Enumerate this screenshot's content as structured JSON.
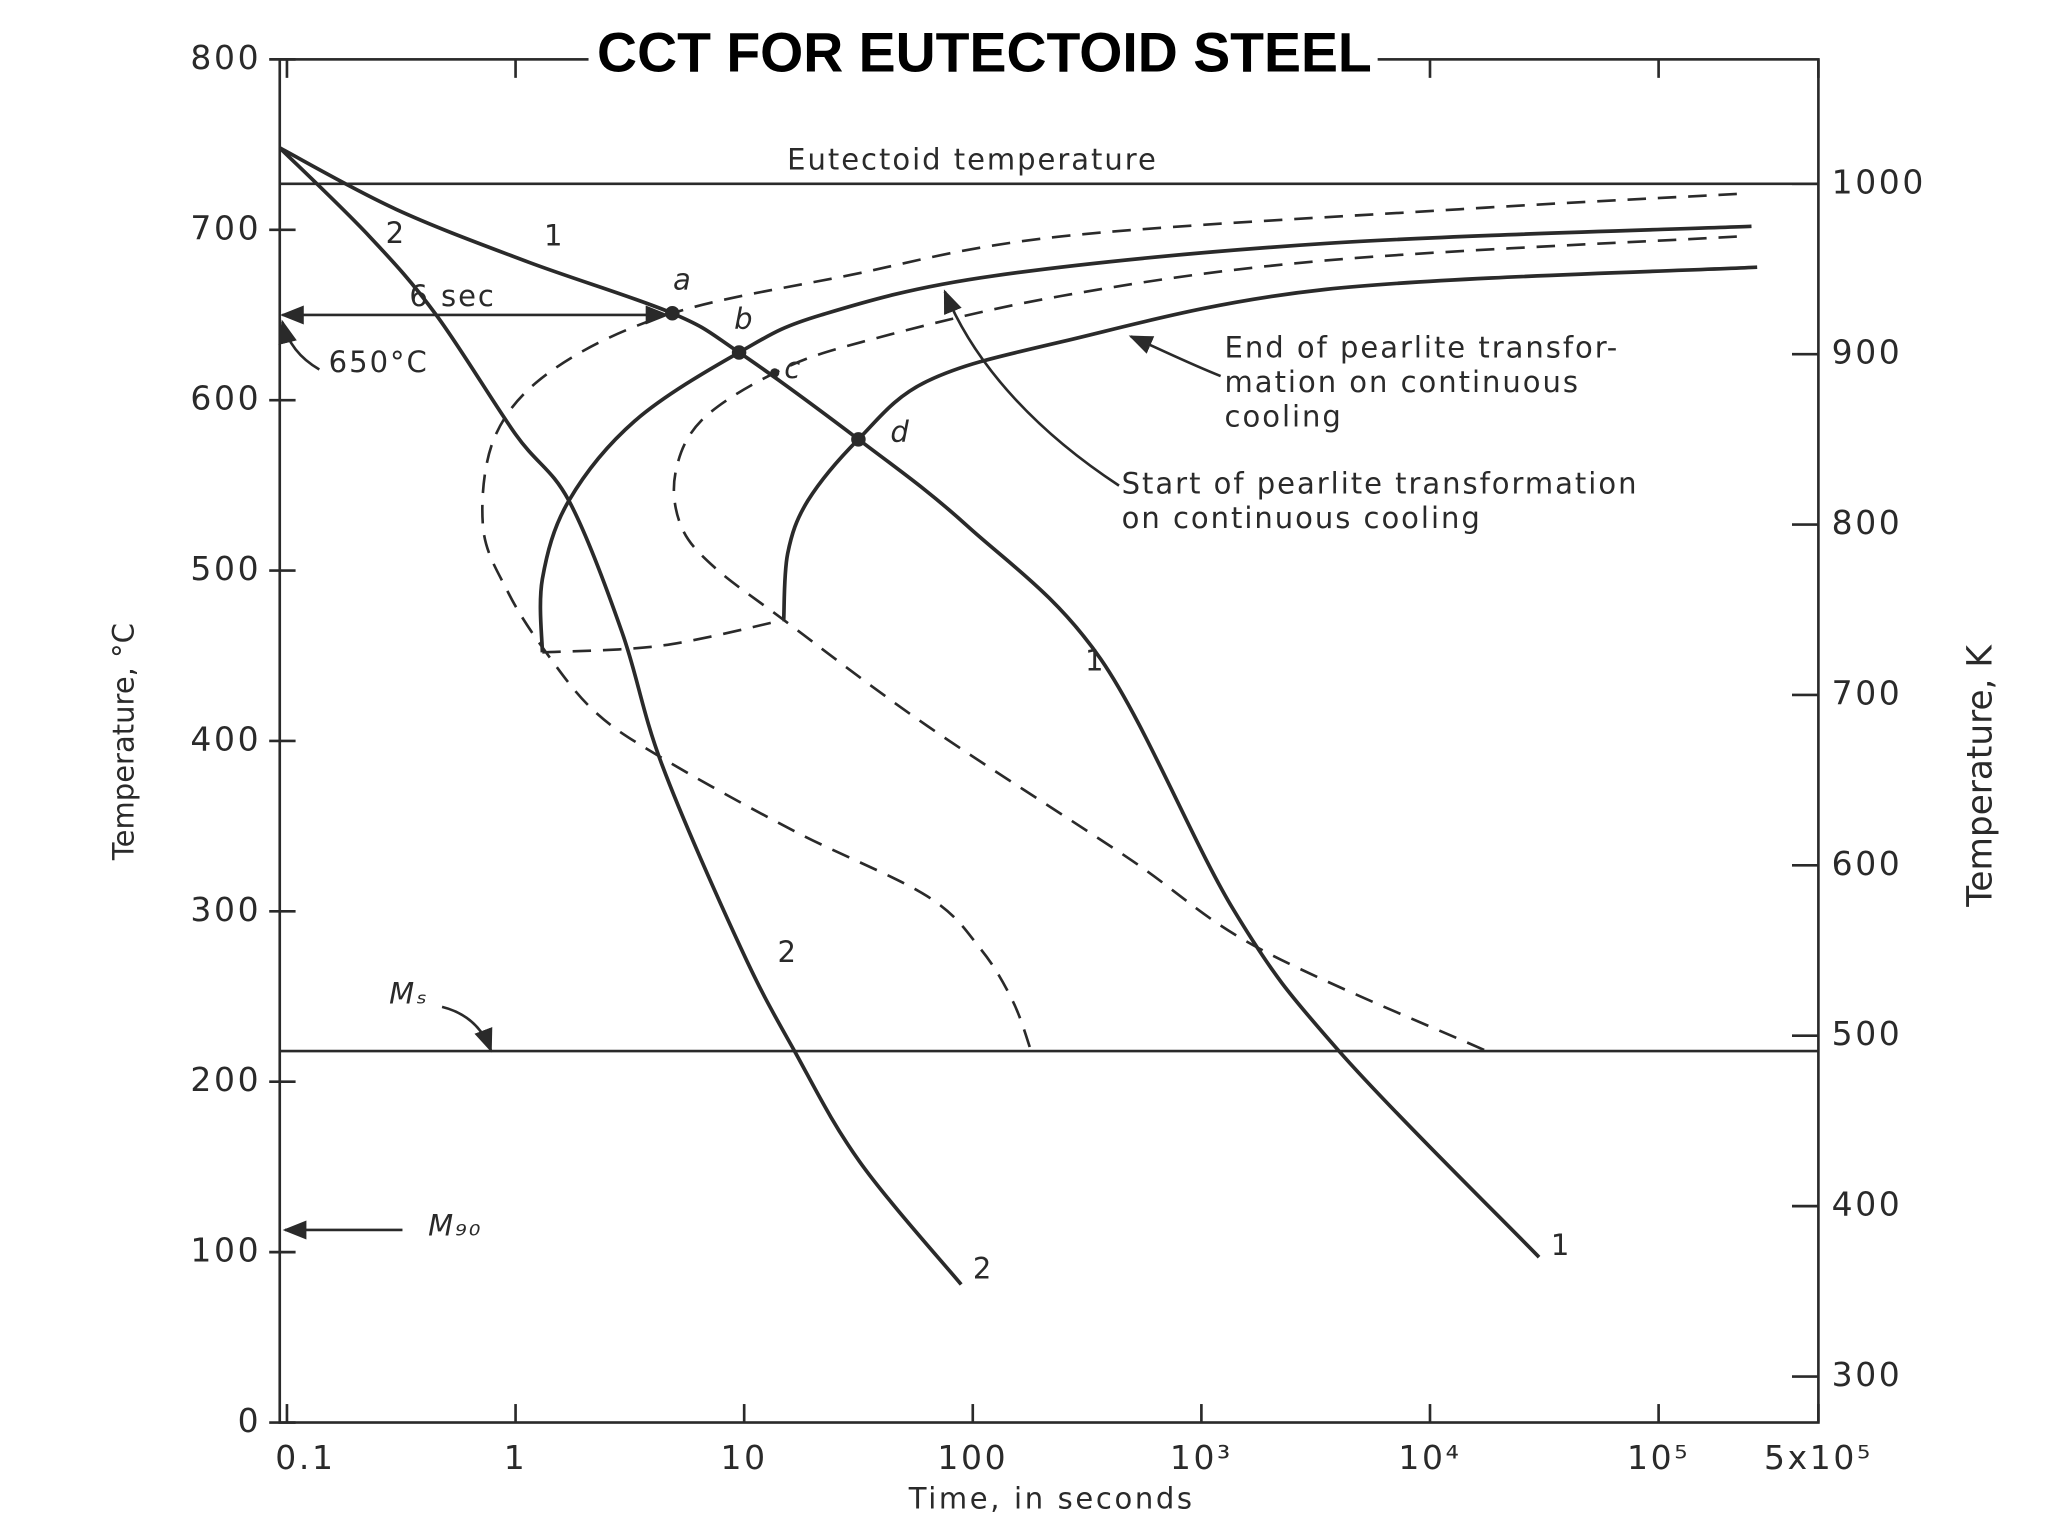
{
  "chart_data": {
    "type": "line",
    "title": "CCT FOR EUTECTOID STEEL",
    "x_label": "Time, in seconds",
    "y_label": "Temperature, °C",
    "y2_label": "Temperature, K",
    "x_scale": "log",
    "xlim": [
      0.093,
      500000
    ],
    "xticks": [
      0.1,
      1,
      10,
      100,
      {
        "value": 1000,
        "label": "10³"
      },
      {
        "value": 10000,
        "label": "10⁴"
      },
      {
        "value": 100000,
        "label": "10⁵"
      },
      {
        "value": 500000,
        "label": "5x10⁵"
      }
    ],
    "ylim": [
      0,
      800
    ],
    "yticks": [
      0,
      100,
      200,
      300,
      400,
      500,
      600,
      700,
      800
    ],
    "y2lim": [
      273,
      1073
    ],
    "y2ticks": [
      300,
      400,
      500,
      600,
      700,
      800,
      900,
      1000
    ],
    "series": [
      {
        "color": "#2a2a2a",
        "dash": false,
        "x": [
          0.093,
          0.3,
          1.14,
          4.85,
          9.5,
          31.6,
          95,
          363,
          1380,
          4000,
          30000
        ],
        "values": [
          748,
          712,
          681,
          651,
          628,
          577,
          526,
          448,
          301,
          218,
          97
        ]
      },
      {
        "color": "#2a2a2a",
        "dash": false,
        "x": [
          0.093,
          0.23,
          0.45,
          1,
          1.71,
          2.92,
          4.37,
          9.7,
          16.6,
          32,
          89
        ],
        "values": [
          748,
          696,
          650,
          580,
          541,
          464,
          386,
          278,
          218,
          153,
          81
        ]
      },
      {
        "color": "#2a2a2a",
        "dash": true,
        "x": [
          220000,
          13400,
          240,
          28,
          4.85,
          1.5,
          0.82,
          0.72,
          0.93,
          1.36,
          2.23,
          4.37,
          16.6,
          63,
          108,
          150,
          180
        ],
        "values": [
          721,
          712,
          696,
          673,
          651,
          619,
          580,
          526,
          487,
          452,
          417,
          390,
          347,
          309,
          278,
          247,
          218
        ]
      },
      {
        "color": "#2a2a2a",
        "dash": false,
        "x": [
          255000,
          3500,
          124,
          21.7,
          9.5,
          3.34,
          1.71,
          1.31,
          1.31
        ],
        "values": [
          702,
          692,
          673,
          650,
          628,
          588,
          541,
          495,
          452
        ]
      },
      {
        "color": "#2a2a2a",
        "dash": false,
        "x": [
          270000,
          3500,
          240,
          63,
          31.6,
          19,
          15.5,
          14.9
        ],
        "values": [
          678,
          665,
          634,
          611,
          577,
          541,
          510,
          471
        ]
      },
      {
        "color": "#2a2a2a",
        "dash": true,
        "x": [
          220000,
          3500,
          240,
          32.5,
          13.6,
          6.5,
          5,
          5.3,
          7.4,
          14.9,
          63,
          470,
          1800,
          17700
        ],
        "values": [
          696,
          682,
          661,
          634,
          616,
          588,
          557,
          526,
          502,
          471,
          409,
          332,
          278,
          218
        ]
      },
      {
        "color": "#2a2a2a",
        "dash": true,
        "x": [
          1.31,
          4.37,
          14.9
        ],
        "values": [
          452,
          456,
          471
        ]
      }
    ],
    "points": {
      "labels": [
        "a",
        "b",
        "c",
        "d"
      ],
      "x": [
        4.85,
        9.5,
        13.6,
        31.6
      ],
      "values": [
        651,
        628,
        616,
        577
      ]
    },
    "reference_lines": [
      {
        "value": 727,
        "label": "Eutectoid temperature"
      },
      {
        "value": 218,
        "label": "Mₛ"
      },
      {
        "value": 650,
        "label": "650°C"
      },
      {
        "value": 113,
        "label": "M₉₀"
      }
    ],
    "annotations": [
      "1",
      "2",
      "1",
      "2",
      "1",
      "2",
      "6 sec",
      [
        "End of pearlite transfor-",
        "mation on continuous",
        "cooling"
      ],
      [
        "Start of pearlite transformation",
        "on continuous cooling"
      ]
    ]
  }
}
